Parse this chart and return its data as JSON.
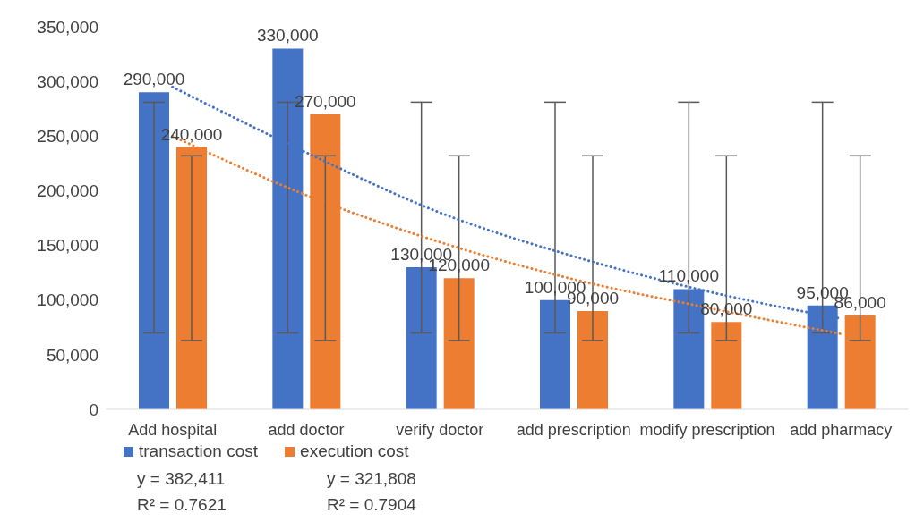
{
  "chart_data": {
    "type": "bar",
    "categories": [
      "Add hospital",
      "add doctor",
      "verify doctor",
      "add prescription",
      "modify prescription",
      "add pharmacy"
    ],
    "series": [
      {
        "name": "transaction cost",
        "color": "#4472c4",
        "values": [
          290000,
          330000,
          130000,
          100000,
          110000,
          95000
        ],
        "value_labels": [
          "290,000",
          "330,000",
          "130,000",
          "100,000",
          "110,000",
          "95,000"
        ],
        "errors": [
          [
            70000,
            281000
          ],
          [
            70000,
            281000
          ],
          [
            70000,
            281000
          ],
          [
            70000,
            281000
          ],
          [
            70000,
            281000
          ],
          [
            70000,
            281000
          ]
        ]
      },
      {
        "name": "execution cost",
        "color": "#ed7d31",
        "values": [
          240000,
          270000,
          120000,
          90000,
          80000,
          86000
        ],
        "value_labels": [
          "240,000",
          "270,000",
          "120,000",
          "90,000",
          "80,000",
          "86,000"
        ],
        "errors": [
          [
            63000,
            232000
          ],
          [
            63000,
            232000
          ],
          [
            63000,
            232000
          ],
          [
            63000,
            232000
          ],
          [
            63000,
            232000
          ],
          [
            63000,
            232000
          ]
        ]
      },
      {
        "type": "line",
        "color": "#4472c4",
        "line_style": "dotted",
        "x": [
          "Add hospital",
          "add doctor",
          "verify doctor",
          "add prescription",
          "modify prescription",
          "add pharmacy"
        ],
        "values": [
          295000,
          235000,
          180000,
          140000,
          108000,
          83000
        ]
      },
      {
        "type": "line",
        "color": "#ed7d31",
        "line_style": "dotted",
        "x": [
          "Add hospital",
          "add doctor",
          "verify doctor",
          "add prescription",
          "modify prescription",
          "add pharmacy"
        ],
        "values": [
          250000,
          196000,
          153000,
          119000,
          93000,
          69000
        ]
      }
    ],
    "ylim": [
      0,
      350000
    ],
    "yticks": [
      0,
      {
        "value": 50000,
        "label": "50,000"
      },
      {
        "value": 100000,
        "label": "100,000"
      },
      {
        "value": 150000,
        "label": "150,000"
      },
      {
        "value": 200000,
        "label": "200,000"
      },
      {
        "value": 250000,
        "label": "250,000"
      },
      {
        "value": 300000,
        "label": "300,000"
      },
      {
        "value": 350000,
        "label": "350,000"
      }
    ],
    "grid": false,
    "legend": "bottom left",
    "marker": "none",
    "annotations": [
      "y = 382,411",
      "R² = 0.7621",
      "y = 321,808",
      "R² = 0.7904"
    ]
  }
}
